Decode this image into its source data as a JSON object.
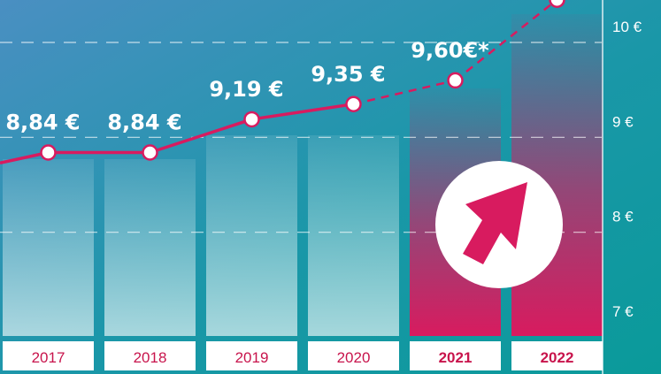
{
  "chart_data": {
    "type": "bar",
    "categories": [
      "2017",
      "2018",
      "2019",
      "2020",
      "2021",
      "2022"
    ],
    "values": [
      8.84,
      8.84,
      9.19,
      9.35,
      9.6,
      10.45
    ],
    "data_labels": [
      "8,84 €",
      "8,84 €",
      "9,19 €",
      "9,35 €",
      "9,60€*",
      ""
    ],
    "line_values": [
      8.84,
      8.84,
      9.19,
      9.35,
      9.6,
      10.45
    ],
    "highlighted_categories": [
      "2021",
      "2022"
    ],
    "yticks": [
      {
        "value": 7,
        "label": "7 €"
      },
      {
        "value": 8,
        "label": "8 €"
      },
      {
        "value": 9,
        "label": "9 €"
      },
      {
        "value": 10,
        "label": "10 €"
      }
    ],
    "ylim": [
      6.85,
      10.6
    ],
    "grid": true,
    "title": "",
    "xlabel": "",
    "ylabel": ""
  },
  "colors": {
    "accent": "#d81b5f",
    "background_top": "#3a8ab0",
    "background_bottom": "#0f9a9c",
    "bar_light": "#bcd8e6",
    "white": "#ffffff"
  },
  "icon": "arrow-up-right-icon"
}
